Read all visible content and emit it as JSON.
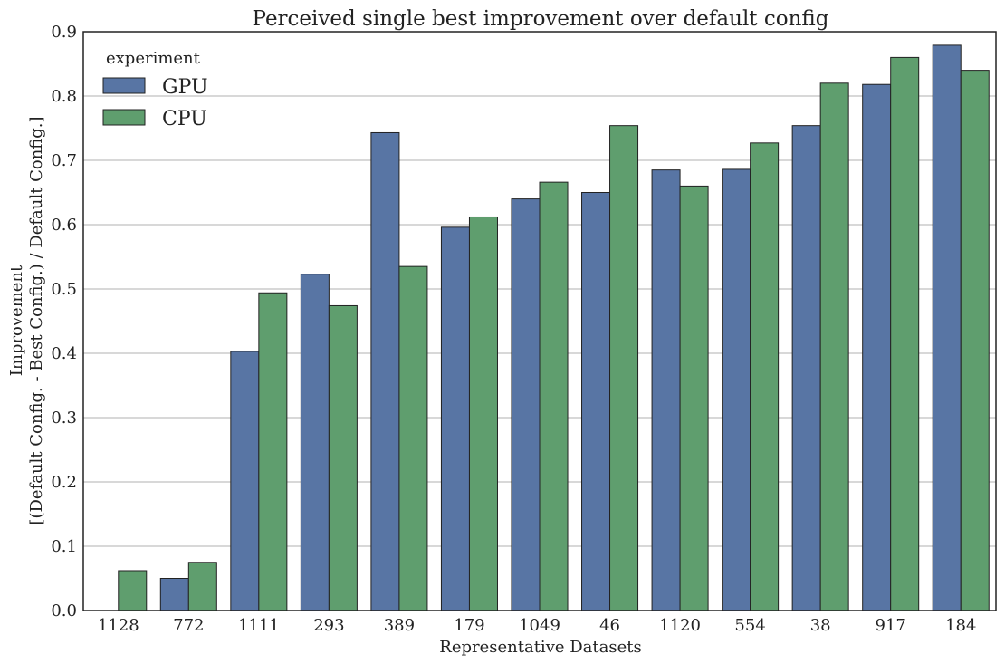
{
  "chart_data": {
    "type": "bar",
    "title": "Perceived single best improvement over default config",
    "xlabel": "Representative Datasets",
    "ylabel": [
      "Improvement",
      "[(Default Config. - Best Config.) / Default Config.]"
    ],
    "ylim": [
      0,
      0.9
    ],
    "yticks": [
      "0.0",
      "0.1",
      "0.2",
      "0.3",
      "0.4",
      "0.5",
      "0.6",
      "0.7",
      "0.8",
      "0.9"
    ],
    "grid": "horizontal",
    "legend": {
      "title": "experiment",
      "placement": "top-left"
    },
    "categories": [
      "1128",
      "772",
      "1111",
      "293",
      "389",
      "179",
      "1049",
      "46",
      "1120",
      "554",
      "38",
      "917",
      "184"
    ],
    "series": [
      {
        "name": "GPU",
        "color": "#5875a4",
        "values": [
          null,
          0.05,
          0.403,
          0.523,
          0.743,
          0.596,
          0.64,
          0.65,
          0.685,
          0.686,
          0.754,
          0.818,
          0.879
        ]
      },
      {
        "name": "CPU",
        "color": "#5f9e6e",
        "values": [
          0.062,
          0.075,
          0.494,
          0.474,
          0.535,
          0.612,
          0.666,
          0.754,
          0.66,
          0.727,
          0.82,
          0.86,
          0.84
        ]
      }
    ]
  }
}
